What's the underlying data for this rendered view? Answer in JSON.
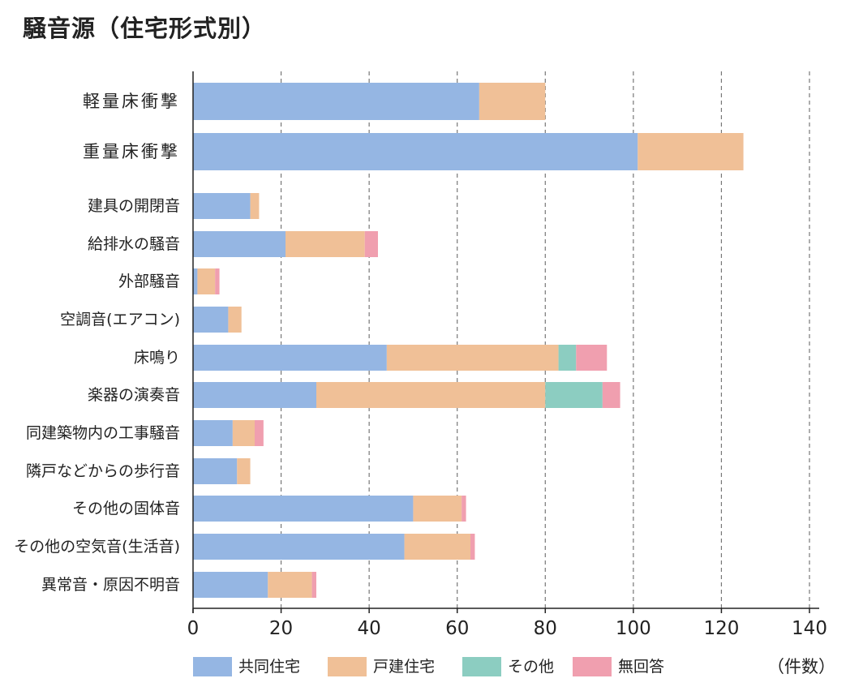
{
  "chart_data": {
    "type": "bar",
    "orientation": "horizontal",
    "stacked": true,
    "title": "騒音源（住宅形式別）",
    "x_unit": "（件数）",
    "xlim": [
      0,
      140
    ],
    "x_ticks": [
      0,
      20,
      40,
      60,
      80,
      100,
      120,
      140
    ],
    "grid": "vertical-dashed",
    "legend_position": "bottom",
    "categories": [
      "軽量床衝撃",
      "重量床衝撃",
      "建具の開閉音",
      "給排水の騒音",
      "外部騒音",
      "空調音(エアコン)",
      "床鳴り",
      "楽器の演奏音",
      "同建築物内の工事騒音",
      "隣戸などからの歩行音",
      "その他の固体音",
      "その他の空気音(生活音)",
      "異常音・原因不明音"
    ],
    "highlighted_categories": [
      "軽量床衝撃",
      "重量床衝撃"
    ],
    "highlight_color": "#c4161c",
    "series": [
      {
        "name": "共同住宅",
        "color": "#95b6e3",
        "values": [
          65,
          101,
          13,
          21,
          1,
          8,
          44,
          28,
          9,
          10,
          50,
          48,
          17
        ]
      },
      {
        "name": "戸建住宅",
        "color": "#f0c097",
        "values": [
          15,
          24,
          2,
          18,
          4,
          3,
          39,
          52,
          5,
          3,
          11,
          15,
          10
        ]
      },
      {
        "name": "その他",
        "color": "#8ccdc1",
        "values": [
          0,
          0,
          0,
          0,
          0,
          0,
          4,
          13,
          0,
          0,
          0,
          0,
          0
        ]
      },
      {
        "name": "無回答",
        "color": "#f09faf",
        "values": [
          0,
          0,
          0,
          3,
          1,
          0,
          7,
          4,
          2,
          0,
          1,
          1,
          1
        ]
      }
    ]
  }
}
